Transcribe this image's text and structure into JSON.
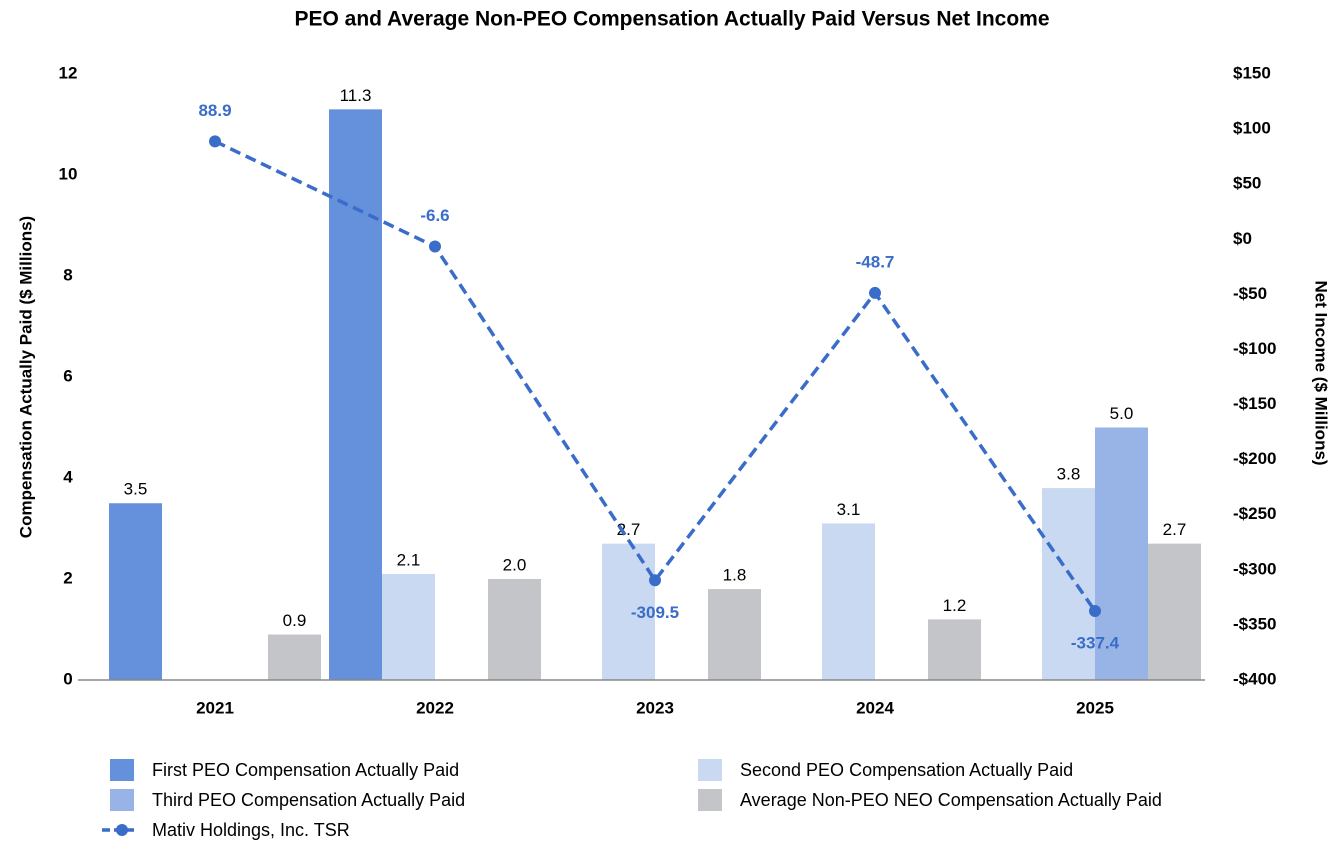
{
  "chart_data": {
    "type": "bar",
    "title": "PEO and Average Non-PEO Compensation Actually Paid Versus Net Income",
    "y_label": "Compensation Actually Paid ($ Millions)",
    "y2_label": "Net Income ($ Millions)",
    "categories": [
      "2021",
      "2022",
      "2023",
      "2024",
      "2025"
    ],
    "ylim": [
      0,
      12
    ],
    "yticks": [
      0,
      2,
      4,
      6,
      8,
      10,
      12
    ],
    "y2lim": [
      -400,
      150
    ],
    "y2ticks": [
      {
        "value": -400,
        "label": "-$400"
      },
      {
        "value": -350,
        "label": "-$350"
      },
      {
        "value": -300,
        "label": "-$300"
      },
      {
        "value": -250,
        "label": "-$250"
      },
      {
        "value": -200,
        "label": "-$200"
      },
      {
        "value": -150,
        "label": "-$150"
      },
      {
        "value": -100,
        "label": "-$100"
      },
      {
        "value": -50,
        "label": "-$50"
      },
      {
        "value": 0,
        "label": "$0"
      },
      {
        "value": 50,
        "label": "$50"
      },
      {
        "value": 100,
        "label": "$100"
      },
      {
        "value": 150,
        "label": "$150"
      }
    ],
    "series": [
      {
        "name": "First PEO Compensation Actually Paid",
        "color": "#6490dc",
        "values": [
          3.5,
          11.3,
          null,
          null,
          null
        ],
        "value_labels": [
          "3.5",
          "11.3",
          null,
          null,
          null
        ]
      },
      {
        "name": "Second PEO Compensation Actually Paid",
        "color": "#c9d9f1",
        "values": [
          null,
          2.1,
          2.7,
          3.1,
          3.8
        ],
        "value_labels": [
          null,
          "2.1",
          "2.7",
          "3.1",
          "3.8"
        ]
      },
      {
        "name": "Third PEO Compensation Actually Paid",
        "color": "#98b3e5",
        "values": [
          null,
          null,
          null,
          null,
          5.0
        ],
        "value_labels": [
          null,
          null,
          null,
          null,
          "5.0"
        ]
      },
      {
        "name": "Average Non-PEO NEO Compensation Actually Paid",
        "color": "#c3c5c9",
        "values": [
          0.9,
          2.0,
          1.8,
          1.2,
          2.7
        ],
        "value_labels": [
          "0.9",
          "2.0",
          "1.8",
          "1.2",
          "2.7"
        ]
      },
      {
        "name": "Mativ Holdings, Inc. TSR",
        "type": "line",
        "axis": "y2",
        "color": "#3a6cc9",
        "values": [
          88.9,
          -6.6,
          -309.5,
          -48.7,
          -337.4
        ]
      }
    ]
  }
}
